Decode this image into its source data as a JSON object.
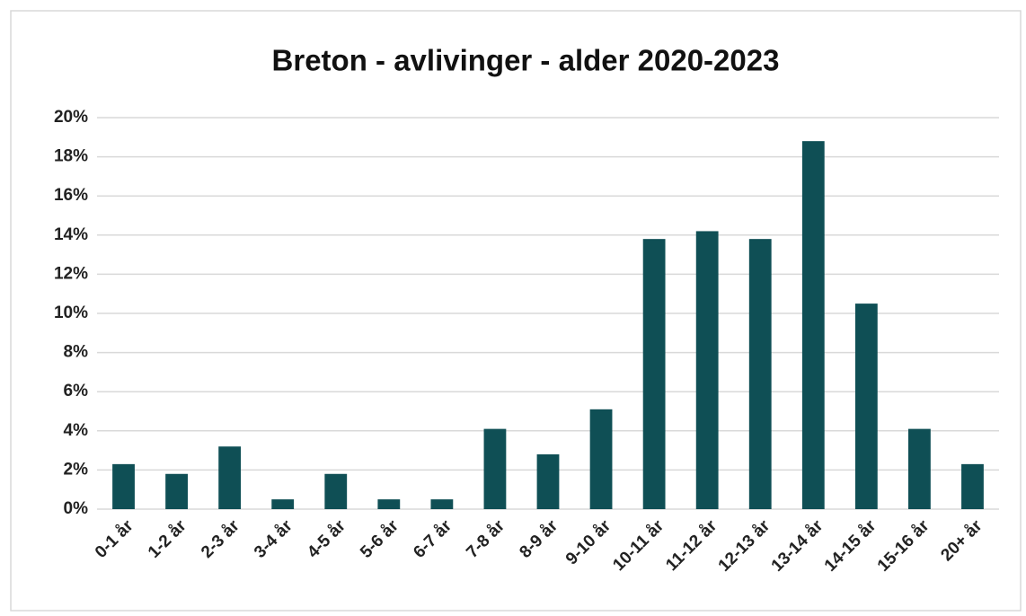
{
  "chart_data": {
    "type": "bar",
    "title": "Breton - avlivinger - alder 2020-2023",
    "categories": [
      "0-1 år",
      "1-2 år",
      "2-3 år",
      "3-4 år",
      "4-5 år",
      "5-6 år",
      "6-7 år",
      "7-8 år",
      "8-9 år",
      "9-10 år",
      "10-11 år",
      "11-12 år",
      "12-13 år",
      "13-14 år",
      "14-15 år",
      "15-16 år",
      "20+ år"
    ],
    "values": [
      2.3,
      1.8,
      3.2,
      0.5,
      1.8,
      0.5,
      0.5,
      4.1,
      2.8,
      5.1,
      13.8,
      14.2,
      13.8,
      18.8,
      10.5,
      4.1,
      2.3
    ],
    "color": "#0f4f55",
    "ylim": [
      0,
      20
    ],
    "yticks": [
      {
        "value": 0,
        "label": "0%"
      },
      {
        "value": 2,
        "label": "2%"
      },
      {
        "value": 4,
        "label": "4%"
      },
      {
        "value": 6,
        "label": "6%"
      },
      {
        "value": 8,
        "label": "8%"
      },
      {
        "value": 10,
        "label": "10%"
      },
      {
        "value": 12,
        "label": "12%"
      },
      {
        "value": 14,
        "label": "14%"
      },
      {
        "value": 16,
        "label": "16%"
      },
      {
        "value": 18,
        "label": "18%"
      },
      {
        "value": 20,
        "label": "20%"
      }
    ],
    "grid": true
  }
}
